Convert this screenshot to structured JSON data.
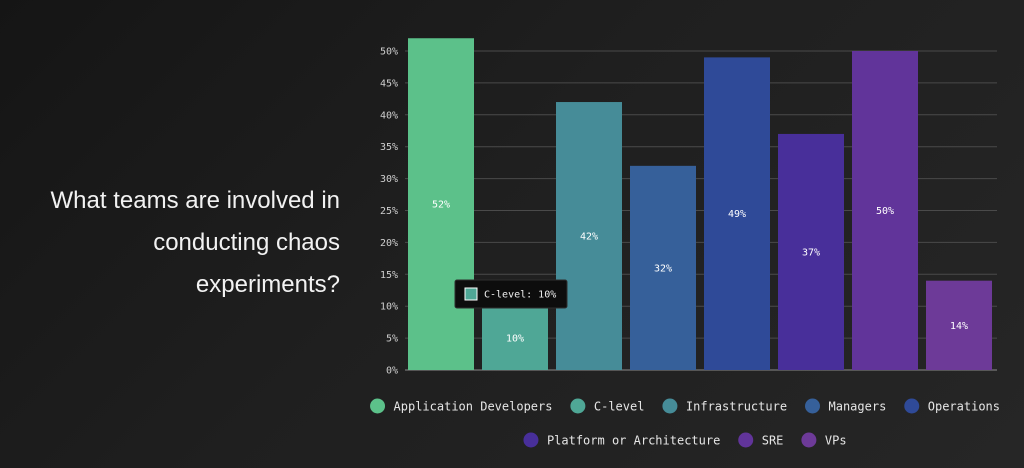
{
  "question": {
    "lines": [
      "What teams are involved in",
      "conducting chaos",
      "experiments?"
    ]
  },
  "tooltip": {
    "category_index": 1,
    "text": "C-level: 10%"
  },
  "chart_data": {
    "type": "bar",
    "categories": [
      "Application Developers",
      "C-level",
      "Infrastructure",
      "Managers",
      "Operations",
      "Platform or Architecture",
      "SRE",
      "VPs"
    ],
    "values": [
      52,
      10,
      42,
      32,
      49,
      37,
      50,
      14
    ],
    "value_labels": [
      "52%",
      "10%",
      "42%",
      "32%",
      "49%",
      "37%",
      "50%",
      "14%"
    ],
    "colors": [
      "#5cc18a",
      "#4fa796",
      "#468c98",
      "#36609a",
      "#2f4a98",
      "#482f9a",
      "#61349a",
      "#6d3a98"
    ],
    "y_ticks": [
      0,
      5,
      10,
      15,
      20,
      25,
      30,
      35,
      40,
      45,
      50
    ],
    "y_tick_labels": [
      "0%",
      "5%",
      "10%",
      "15%",
      "20%",
      "25%",
      "30%",
      "35%",
      "40%",
      "45%",
      "50%"
    ],
    "ylim": [
      0,
      50
    ],
    "grid": true,
    "legend_position": "bottom",
    "title": "",
    "xlabel": "",
    "ylabel": ""
  }
}
